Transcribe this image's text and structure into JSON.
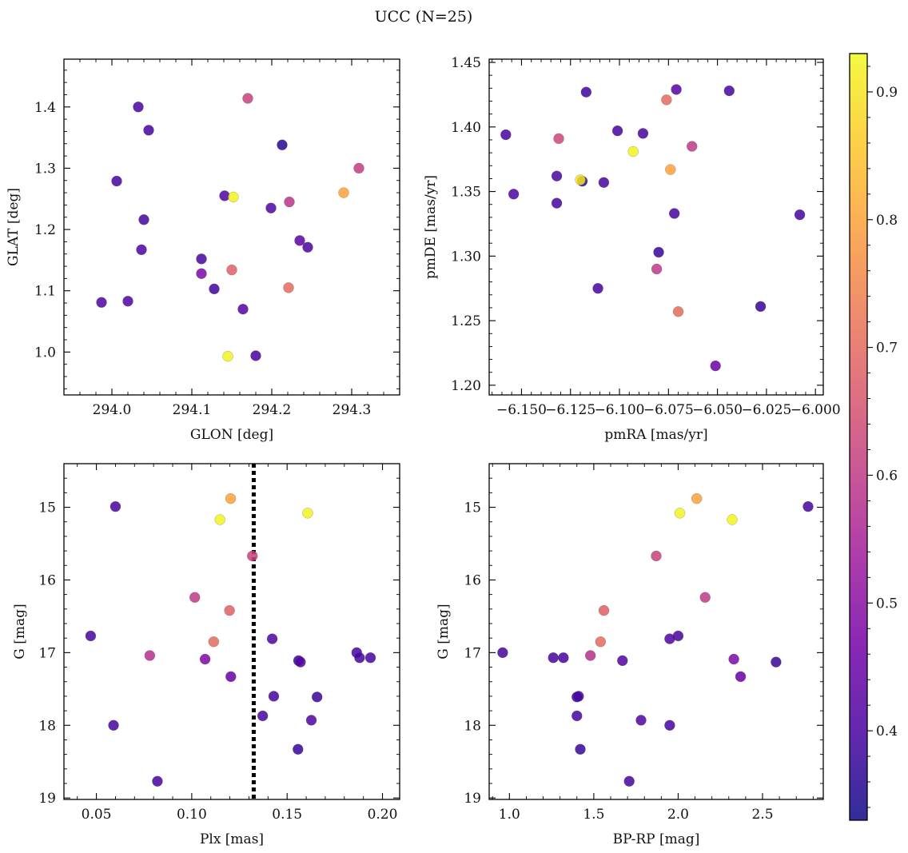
{
  "figure": {
    "title": "UCC (N=25)"
  },
  "colormap": {
    "name": "plasma",
    "stops": [
      "#0d0887",
      "#46039f",
      "#7201a8",
      "#9c179e",
      "#bd3786",
      "#d8576b",
      "#ed7953",
      "#fb9f3a",
      "#fdca26",
      "#f0f921"
    ],
    "range": [
      0.33,
      0.93
    ],
    "ticks": [
      0.4,
      0.5,
      0.6,
      0.7,
      0.8,
      0.9
    ],
    "tick_labels": [
      "0.4",
      "0.5",
      "0.6",
      "0.7",
      "0.8",
      "0.9"
    ]
  },
  "chart_data": [
    {
      "type": "scatter",
      "xlabel": "GLON [deg]",
      "ylabel": "GLAT [deg]",
      "xlim": [
        293.94,
        294.36
      ],
      "ylim": [
        0.93,
        1.478
      ],
      "xticks": [
        294.0,
        294.1,
        294.2,
        294.3
      ],
      "xtick_labels": [
        "294.0",
        "294.1",
        "294.2",
        "294.3"
      ],
      "yticks": [
        1.0,
        1.1,
        1.2,
        1.3,
        1.4
      ],
      "ytick_labels": [
        "1.0",
        "1.1",
        "1.2",
        "1.3",
        "1.4"
      ],
      "points": [
        {
          "x": 294.033,
          "y": 1.4,
          "c": 0.4
        },
        {
          "x": 294.046,
          "y": 1.362,
          "c": 0.4
        },
        {
          "x": 294.006,
          "y": 1.279,
          "c": 0.4
        },
        {
          "x": 294.04,
          "y": 1.216,
          "c": 0.4
        },
        {
          "x": 294.037,
          "y": 1.167,
          "c": 0.41
        },
        {
          "x": 293.987,
          "y": 1.081,
          "c": 0.41
        },
        {
          "x": 294.02,
          "y": 1.083,
          "c": 0.41
        },
        {
          "x": 294.17,
          "y": 1.414,
          "c": 0.62
        },
        {
          "x": 294.213,
          "y": 1.338,
          "c": 0.36
        },
        {
          "x": 294.141,
          "y": 1.255,
          "c": 0.41
        },
        {
          "x": 294.152,
          "y": 1.253,
          "c": 0.92
        },
        {
          "x": 294.199,
          "y": 1.235,
          "c": 0.41
        },
        {
          "x": 294.222,
          "y": 1.245,
          "c": 0.59
        },
        {
          "x": 294.309,
          "y": 1.3,
          "c": 0.61
        },
        {
          "x": 294.29,
          "y": 1.26,
          "c": 0.8
        },
        {
          "x": 294.235,
          "y": 1.182,
          "c": 0.43
        },
        {
          "x": 294.245,
          "y": 1.171,
          "c": 0.4
        },
        {
          "x": 294.112,
          "y": 1.152,
          "c": 0.4
        },
        {
          "x": 294.112,
          "y": 1.128,
          "c": 0.48
        },
        {
          "x": 294.15,
          "y": 1.134,
          "c": 0.68
        },
        {
          "x": 294.128,
          "y": 1.103,
          "c": 0.39
        },
        {
          "x": 294.221,
          "y": 1.105,
          "c": 0.7
        },
        {
          "x": 294.164,
          "y": 1.07,
          "c": 0.42
        },
        {
          "x": 294.145,
          "y": 0.993,
          "c": 0.92
        },
        {
          "x": 294.18,
          "y": 0.994,
          "c": 0.4
        }
      ]
    },
    {
      "type": "scatter",
      "xlabel": "pmRA [mas/yr]",
      "ylabel": "pmDE [mas/yr]",
      "xlim": [
        -6.1665,
        -5.996
      ],
      "ylim": [
        1.1925,
        1.4525
      ],
      "xticks": [
        -6.15,
        -6.125,
        -6.1,
        -6.075,
        -6.05,
        -6.025,
        -6.0
      ],
      "xtick_labels": [
        "−6.150",
        "−6.125",
        "−6.100",
        "−6.075",
        "−6.050",
        "−6.025",
        "−6.000"
      ],
      "yticks": [
        1.2,
        1.25,
        1.3,
        1.35,
        1.4,
        1.45
      ],
      "ytick_labels": [
        "1.20",
        "1.25",
        "1.30",
        "1.35",
        "1.40",
        "1.45"
      ],
      "points": [
        {
          "x": -6.158,
          "y": 1.394,
          "c": 0.4
        },
        {
          "x": -6.154,
          "y": 1.348,
          "c": 0.41
        },
        {
          "x": -6.131,
          "y": 1.391,
          "c": 0.63
        },
        {
          "x": -6.132,
          "y": 1.362,
          "c": 0.4
        },
        {
          "x": -6.132,
          "y": 1.341,
          "c": 0.4
        },
        {
          "x": -6.119,
          "y": 1.358,
          "c": 0.36
        },
        {
          "x": -6.12,
          "y": 1.359,
          "c": 0.9
        },
        {
          "x": -6.117,
          "y": 1.427,
          "c": 0.39
        },
        {
          "x": -6.108,
          "y": 1.357,
          "c": 0.4
        },
        {
          "x": -6.101,
          "y": 1.397,
          "c": 0.4
        },
        {
          "x": -6.093,
          "y": 1.381,
          "c": 0.92
        },
        {
          "x": -6.088,
          "y": 1.395,
          "c": 0.4
        },
        {
          "x": -6.076,
          "y": 1.421,
          "c": 0.7
        },
        {
          "x": -6.071,
          "y": 1.429,
          "c": 0.42
        },
        {
          "x": -6.074,
          "y": 1.367,
          "c": 0.8
        },
        {
          "x": -6.063,
          "y": 1.385,
          "c": 0.6
        },
        {
          "x": -6.072,
          "y": 1.333,
          "c": 0.4
        },
        {
          "x": -6.044,
          "y": 1.428,
          "c": 0.4
        },
        {
          "x": -6.008,
          "y": 1.332,
          "c": 0.4
        },
        {
          "x": -6.111,
          "y": 1.275,
          "c": 0.4
        },
        {
          "x": -6.08,
          "y": 1.303,
          "c": 0.38
        },
        {
          "x": -6.081,
          "y": 1.29,
          "c": 0.6
        },
        {
          "x": -6.07,
          "y": 1.257,
          "c": 0.7
        },
        {
          "x": -6.028,
          "y": 1.261,
          "c": 0.38
        },
        {
          "x": -6.051,
          "y": 1.215,
          "c": 0.45
        }
      ]
    },
    {
      "type": "scatter",
      "xlabel": "Plx [mas]",
      "ylabel": "G [mag]",
      "xlim": [
        0.033,
        0.209
      ],
      "ylim": [
        19.02,
        14.4
      ],
      "y_inverted": true,
      "xticks": [
        0.05,
        0.1,
        0.15,
        0.2
      ],
      "xtick_labels": [
        "0.05",
        "0.10",
        "0.15",
        "0.20"
      ],
      "yticks": [
        15,
        16,
        17,
        18,
        19
      ],
      "ytick_labels": [
        "15",
        "16",
        "17",
        "18",
        "19"
      ],
      "vline": {
        "x": 0.1325,
        "style": "dotted",
        "color": "#000000"
      },
      "points": [
        {
          "x": 0.06,
          "y": 14.99,
          "c": 0.4
        },
        {
          "x": 0.1204,
          "y": 14.88,
          "c": 0.8
        },
        {
          "x": 0.1148,
          "y": 15.17,
          "c": 0.92
        },
        {
          "x": 0.1608,
          "y": 15.08,
          "c": 0.92
        },
        {
          "x": 0.1318,
          "y": 15.67,
          "c": 0.62
        },
        {
          "x": 0.1016,
          "y": 16.24,
          "c": 0.6
        },
        {
          "x": 0.1198,
          "y": 16.42,
          "c": 0.68
        },
        {
          "x": 0.047,
          "y": 16.77,
          "c": 0.4
        },
        {
          "x": 0.1115,
          "y": 16.85,
          "c": 0.7
        },
        {
          "x": 0.1422,
          "y": 16.81,
          "c": 0.41
        },
        {
          "x": 0.078,
          "y": 17.04,
          "c": 0.58
        },
        {
          "x": 0.107,
          "y": 17.09,
          "c": 0.48
        },
        {
          "x": 0.156,
          "y": 17.11,
          "c": 0.38
        },
        {
          "x": 0.157,
          "y": 17.13,
          "c": 0.42
        },
        {
          "x": 0.1865,
          "y": 17.0,
          "c": 0.4
        },
        {
          "x": 0.188,
          "y": 17.07,
          "c": 0.4
        },
        {
          "x": 0.1937,
          "y": 17.07,
          "c": 0.4
        },
        {
          "x": 0.1205,
          "y": 17.33,
          "c": 0.45
        },
        {
          "x": 0.143,
          "y": 17.6,
          "c": 0.4
        },
        {
          "x": 0.1657,
          "y": 17.61,
          "c": 0.38
        },
        {
          "x": 0.1372,
          "y": 17.87,
          "c": 0.4
        },
        {
          "x": 0.1627,
          "y": 17.93,
          "c": 0.41
        },
        {
          "x": 0.059,
          "y": 18.0,
          "c": 0.4
        },
        {
          "x": 0.1557,
          "y": 18.33,
          "c": 0.38
        },
        {
          "x": 0.082,
          "y": 18.77,
          "c": 0.4
        }
      ]
    },
    {
      "type": "scatter",
      "xlabel": "BP-RP [mag]",
      "ylabel": "G [mag]",
      "xlim": [
        0.88,
        2.86
      ],
      "ylim": [
        19.02,
        14.4
      ],
      "y_inverted": true,
      "xticks": [
        1.0,
        1.5,
        2.0,
        2.5
      ],
      "xtick_labels": [
        "1.0",
        "1.5",
        "2.0",
        "2.5"
      ],
      "yticks": [
        15,
        16,
        17,
        18,
        19
      ],
      "ytick_labels": [
        "15",
        "16",
        "17",
        "18",
        "19"
      ],
      "points": [
        {
          "x": 2.77,
          "y": 14.99,
          "c": 0.4
        },
        {
          "x": 2.11,
          "y": 14.88,
          "c": 0.8
        },
        {
          "x": 2.32,
          "y": 15.17,
          "c": 0.92
        },
        {
          "x": 2.01,
          "y": 15.08,
          "c": 0.92
        },
        {
          "x": 1.87,
          "y": 15.67,
          "c": 0.62
        },
        {
          "x": 2.16,
          "y": 16.24,
          "c": 0.6
        },
        {
          "x": 1.56,
          "y": 16.42,
          "c": 0.68
        },
        {
          "x": 2.0,
          "y": 16.77,
          "c": 0.4
        },
        {
          "x": 1.54,
          "y": 16.85,
          "c": 0.7
        },
        {
          "x": 1.95,
          "y": 16.81,
          "c": 0.41
        },
        {
          "x": 1.48,
          "y": 17.04,
          "c": 0.58
        },
        {
          "x": 2.33,
          "y": 17.09,
          "c": 0.48
        },
        {
          "x": 1.67,
          "y": 17.11,
          "c": 0.42
        },
        {
          "x": 2.58,
          "y": 17.13,
          "c": 0.38
        },
        {
          "x": 0.96,
          "y": 17.0,
          "c": 0.4
        },
        {
          "x": 1.26,
          "y": 17.07,
          "c": 0.4
        },
        {
          "x": 1.32,
          "y": 17.07,
          "c": 0.4
        },
        {
          "x": 2.37,
          "y": 17.33,
          "c": 0.45
        },
        {
          "x": 1.4,
          "y": 17.61,
          "c": 0.38
        },
        {
          "x": 1.41,
          "y": 17.6,
          "c": 0.4
        },
        {
          "x": 1.4,
          "y": 17.87,
          "c": 0.4
        },
        {
          "x": 1.78,
          "y": 17.93,
          "c": 0.41
        },
        {
          "x": 1.95,
          "y": 18.0,
          "c": 0.4
        },
        {
          "x": 1.42,
          "y": 18.33,
          "c": 0.38
        },
        {
          "x": 1.71,
          "y": 18.77,
          "c": 0.4
        }
      ]
    }
  ]
}
